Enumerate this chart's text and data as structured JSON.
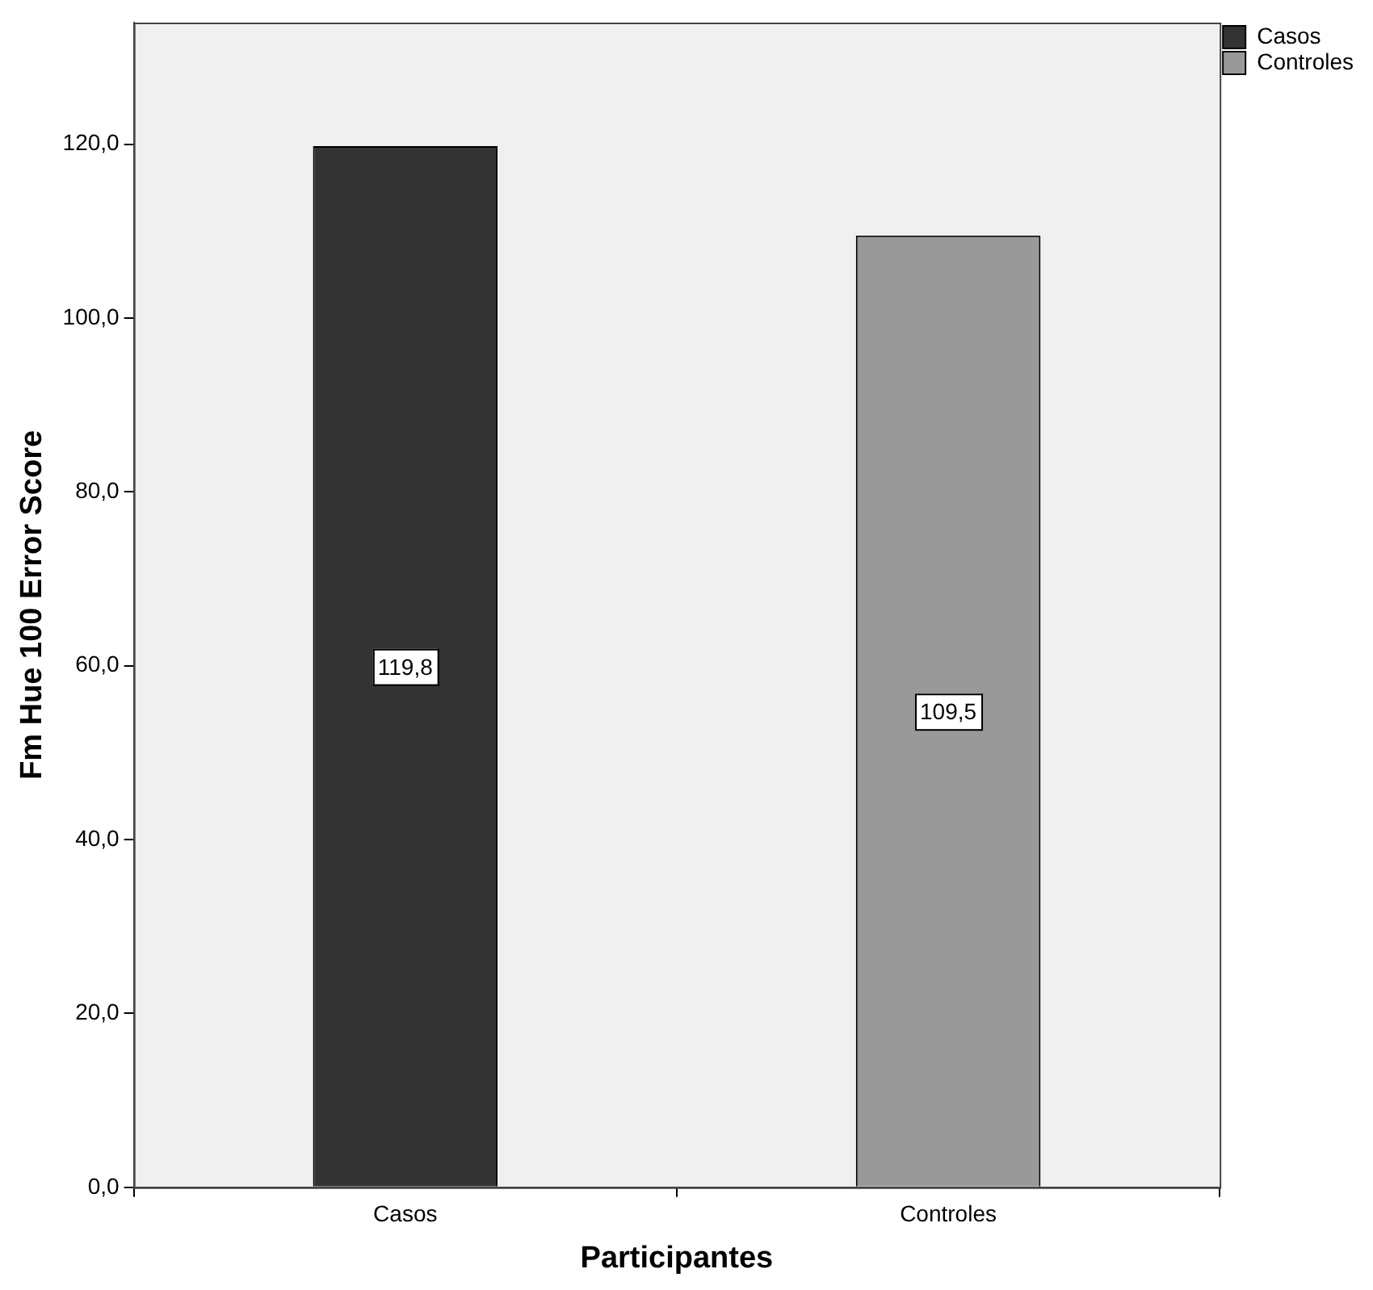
{
  "chart_data": {
    "type": "bar",
    "xlabel": "Participantes",
    "ylabel": "Fm Hue 100 Error Score",
    "categories": [
      "Casos",
      "Controles"
    ],
    "series": [
      {
        "name": "Casos",
        "color": "#333333",
        "values": [
          119.8,
          null
        ],
        "value_labels": [
          "119,8",
          null
        ]
      },
      {
        "name": "Controles",
        "color": "#999999",
        "values": [
          null,
          109.5
        ],
        "value_labels": [
          null,
          "109,5"
        ]
      }
    ],
    "ylim": [
      0,
      134
    ],
    "yticks": [
      {
        "value": 0,
        "label": "0,0"
      },
      {
        "value": 20,
        "label": "20,0"
      },
      {
        "value": 40,
        "label": "40,0"
      },
      {
        "value": 60,
        "label": "60,0"
      },
      {
        "value": 80,
        "label": "80,0"
      },
      {
        "value": 100,
        "label": "100,0"
      },
      {
        "value": 120,
        "label": "120,0"
      }
    ],
    "grid": false,
    "legend": "top right"
  }
}
